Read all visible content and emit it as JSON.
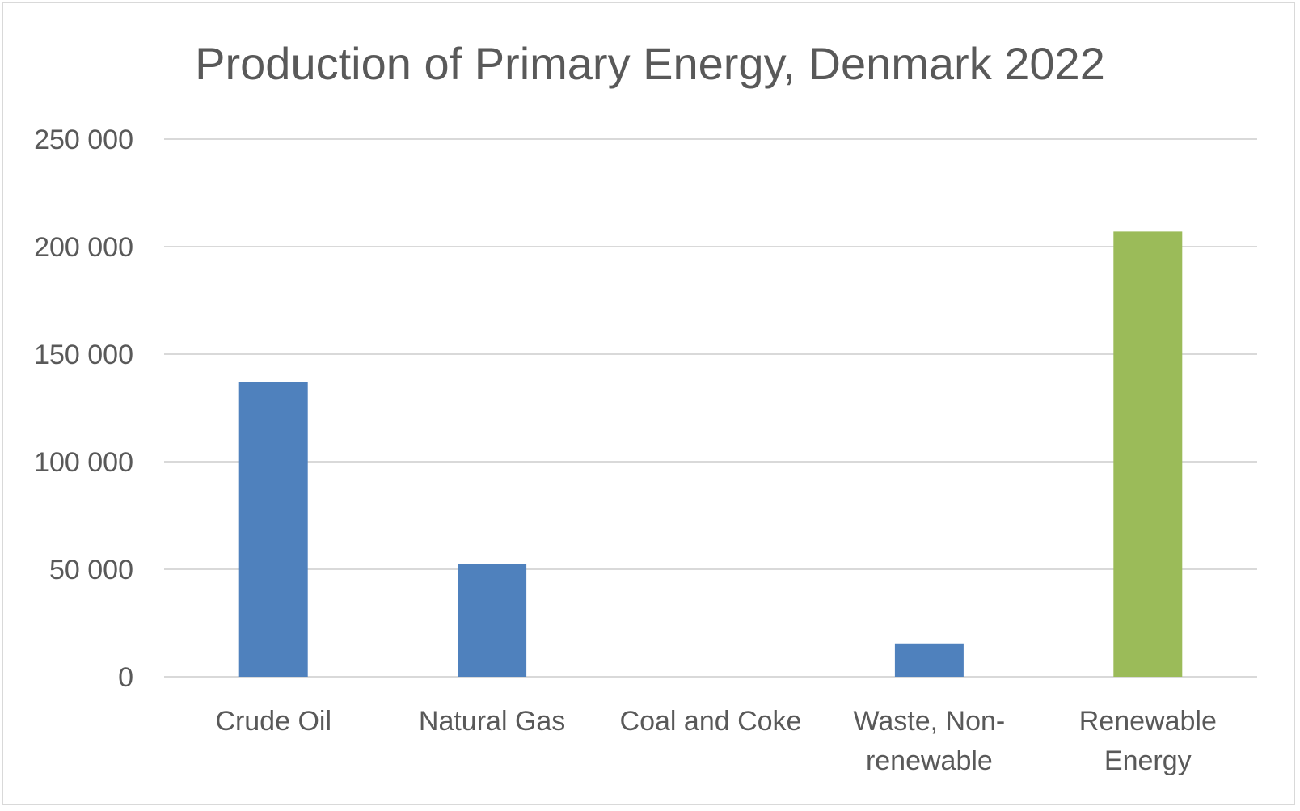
{
  "chart_data": {
    "type": "bar",
    "title": "Production of Primary Energy, Denmark 2022",
    "categories": [
      [
        "Crude Oil"
      ],
      [
        "Natural Gas"
      ],
      [
        "Coal and Coke"
      ],
      [
        "Waste, Non-",
        "renewable"
      ],
      [
        "Renewable",
        "Energy"
      ]
    ],
    "values": [
      137000,
      52500,
      0,
      15500,
      207000
    ],
    "bar_colors": [
      "#4f81bd",
      "#4f81bd",
      "#4f81bd",
      "#4f81bd",
      "#9bbb59"
    ],
    "ylim": [
      0,
      250000
    ],
    "yticks": [
      0,
      50000,
      100000,
      150000,
      200000,
      250000
    ],
    "ytick_labels": [
      "0",
      "50 000",
      "100 000",
      "150 000",
      "200 000",
      "250 000"
    ],
    "grid": true,
    "legend": "none"
  }
}
